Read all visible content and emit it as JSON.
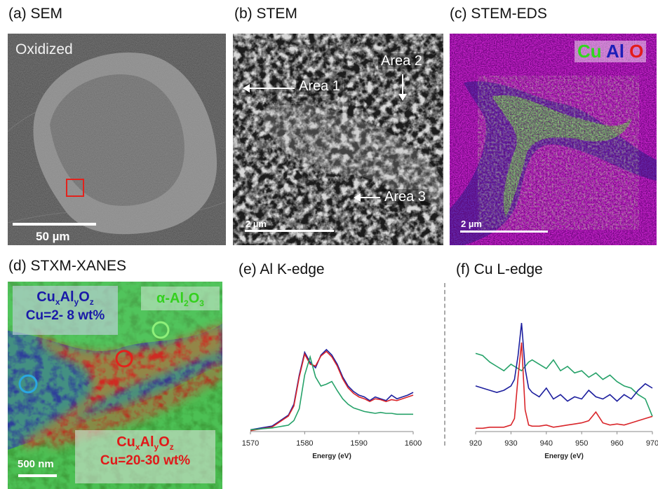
{
  "panels": {
    "a": {
      "label": "(a) SEM",
      "state_text": "Oxidized",
      "scalebar_text": "50 µm"
    },
    "b": {
      "label": "(b) STEM",
      "area1": "Area 1",
      "area2": "Area 2",
      "area3": "Area 3",
      "scalebar_text": "2 µm"
    },
    "c": {
      "label": "(c) STEM-EDS",
      "legend": [
        "Cu",
        "Al",
        "O"
      ],
      "scalebar_text": "2 µm"
    },
    "d": {
      "label": "(d) STXM-XANES",
      "blue_box": {
        "phase": "CuxAlyOz",
        "content": "Cu=2- 8 wt%"
      },
      "green_box": {
        "phase": "α-Al2O3"
      },
      "red_box": {
        "phase": "CuxAlyOz",
        "content": "Cu=20-30 wt%"
      },
      "scalebar_text": "500 nm"
    },
    "e": {
      "label": "(e) Al K-edge"
    },
    "f": {
      "label": "(f) Cu L-edge"
    }
  },
  "colors": {
    "red": "#d9252a",
    "blue": "#1d1f9e",
    "green": "#26a269",
    "sem_square": "#e3221c",
    "blue_circle": "#2aa7e0",
    "green_circle": "#8ff07a"
  },
  "chart_data": [
    {
      "type": "line",
      "xlabel": "Energy (eV)",
      "xlim": [
        1570,
        1600
      ],
      "xticks": [
        1570,
        1580,
        1590,
        1600
      ],
      "ylabel": "",
      "grid": false,
      "series": [
        {
          "color": "#1d1f9e",
          "x": [
            1570,
            1572,
            1574,
            1575,
            1576,
            1577,
            1578,
            1579,
            1580,
            1581,
            1582,
            1583,
            1584,
            1585,
            1586,
            1587,
            1588,
            1589,
            1590,
            1591,
            1592,
            1593,
            1594,
            1595,
            1596,
            1597,
            1598,
            1599,
            1600
          ],
          "y": [
            0.02,
            0.04,
            0.06,
            0.1,
            0.14,
            0.18,
            0.3,
            0.62,
            0.87,
            0.76,
            0.7,
            0.84,
            0.9,
            0.84,
            0.74,
            0.6,
            0.5,
            0.44,
            0.4,
            0.38,
            0.34,
            0.38,
            0.36,
            0.34,
            0.4,
            0.36,
            0.38,
            0.4,
            0.43
          ]
        },
        {
          "color": "#d9252a",
          "x": [
            1570,
            1572,
            1574,
            1575,
            1576,
            1577,
            1578,
            1579,
            1580,
            1581,
            1582,
            1583,
            1584,
            1585,
            1586,
            1587,
            1588,
            1589,
            1590,
            1591,
            1592,
            1593,
            1594,
            1595,
            1596,
            1597,
            1598,
            1599,
            1600
          ],
          "y": [
            0.01,
            0.03,
            0.05,
            0.09,
            0.13,
            0.17,
            0.28,
            0.6,
            0.85,
            0.74,
            0.72,
            0.83,
            0.88,
            0.82,
            0.72,
            0.58,
            0.48,
            0.42,
            0.38,
            0.36,
            0.33,
            0.36,
            0.35,
            0.33,
            0.35,
            0.34,
            0.36,
            0.38,
            0.4
          ]
        },
        {
          "color": "#26a269",
          "x": [
            1570,
            1572,
            1574,
            1575,
            1576,
            1577,
            1578,
            1579,
            1580,
            1581,
            1582,
            1583,
            1584,
            1585,
            1586,
            1587,
            1588,
            1589,
            1590,
            1591,
            1592,
            1593,
            1594,
            1595,
            1596,
            1597,
            1598,
            1599,
            1600
          ],
          "y": [
            0.02,
            0.03,
            0.04,
            0.05,
            0.06,
            0.07,
            0.12,
            0.25,
            0.62,
            0.82,
            0.6,
            0.5,
            0.52,
            0.55,
            0.45,
            0.36,
            0.3,
            0.26,
            0.24,
            0.22,
            0.21,
            0.2,
            0.21,
            0.2,
            0.2,
            0.19,
            0.19,
            0.19,
            0.19
          ]
        }
      ]
    },
    {
      "type": "line",
      "xlabel": "Energy (eV)",
      "xlim": [
        920,
        970
      ],
      "xticks": [
        920,
        930,
        940,
        950,
        960,
        970
      ],
      "ylabel": "",
      "grid": false,
      "series": [
        {
          "color": "#26a269",
          "x": [
            920,
            922,
            924,
            926,
            928,
            930,
            931,
            932,
            933,
            934,
            935,
            936,
            938,
            940,
            942,
            944,
            946,
            948,
            950,
            952,
            954,
            956,
            958,
            960,
            962,
            964,
            966,
            968,
            970
          ],
          "y": [
            0.72,
            0.7,
            0.64,
            0.6,
            0.56,
            0.62,
            0.6,
            0.58,
            0.56,
            0.6,
            0.64,
            0.66,
            0.62,
            0.58,
            0.66,
            0.56,
            0.6,
            0.54,
            0.56,
            0.5,
            0.54,
            0.48,
            0.52,
            0.46,
            0.42,
            0.4,
            0.34,
            0.3,
            0.14
          ]
        },
        {
          "color": "#1d1f9e",
          "x": [
            920,
            922,
            924,
            926,
            928,
            930,
            931,
            932,
            933,
            934,
            935,
            936,
            938,
            940,
            942,
            944,
            946,
            948,
            950,
            952,
            954,
            956,
            958,
            960,
            962,
            964,
            966,
            968,
            970
          ],
          "y": [
            0.42,
            0.4,
            0.38,
            0.36,
            0.38,
            0.42,
            0.48,
            0.7,
            1.0,
            0.58,
            0.4,
            0.36,
            0.32,
            0.4,
            0.3,
            0.34,
            0.28,
            0.32,
            0.3,
            0.38,
            0.32,
            0.3,
            0.34,
            0.28,
            0.34,
            0.3,
            0.38,
            0.44,
            0.4
          ]
        },
        {
          "color": "#d9252a",
          "x": [
            920,
            922,
            924,
            926,
            928,
            930,
            931,
            932,
            933,
            934,
            935,
            936,
            938,
            940,
            942,
            944,
            946,
            948,
            950,
            952,
            954,
            956,
            958,
            960,
            962,
            964,
            966,
            968,
            970
          ],
          "y": [
            0.03,
            0.03,
            0.04,
            0.04,
            0.04,
            0.06,
            0.12,
            0.5,
            0.82,
            0.2,
            0.06,
            0.05,
            0.05,
            0.06,
            0.04,
            0.05,
            0.06,
            0.07,
            0.08,
            0.1,
            0.18,
            0.08,
            0.06,
            0.07,
            0.06,
            0.08,
            0.1,
            0.12,
            0.14
          ]
        }
      ]
    }
  ]
}
